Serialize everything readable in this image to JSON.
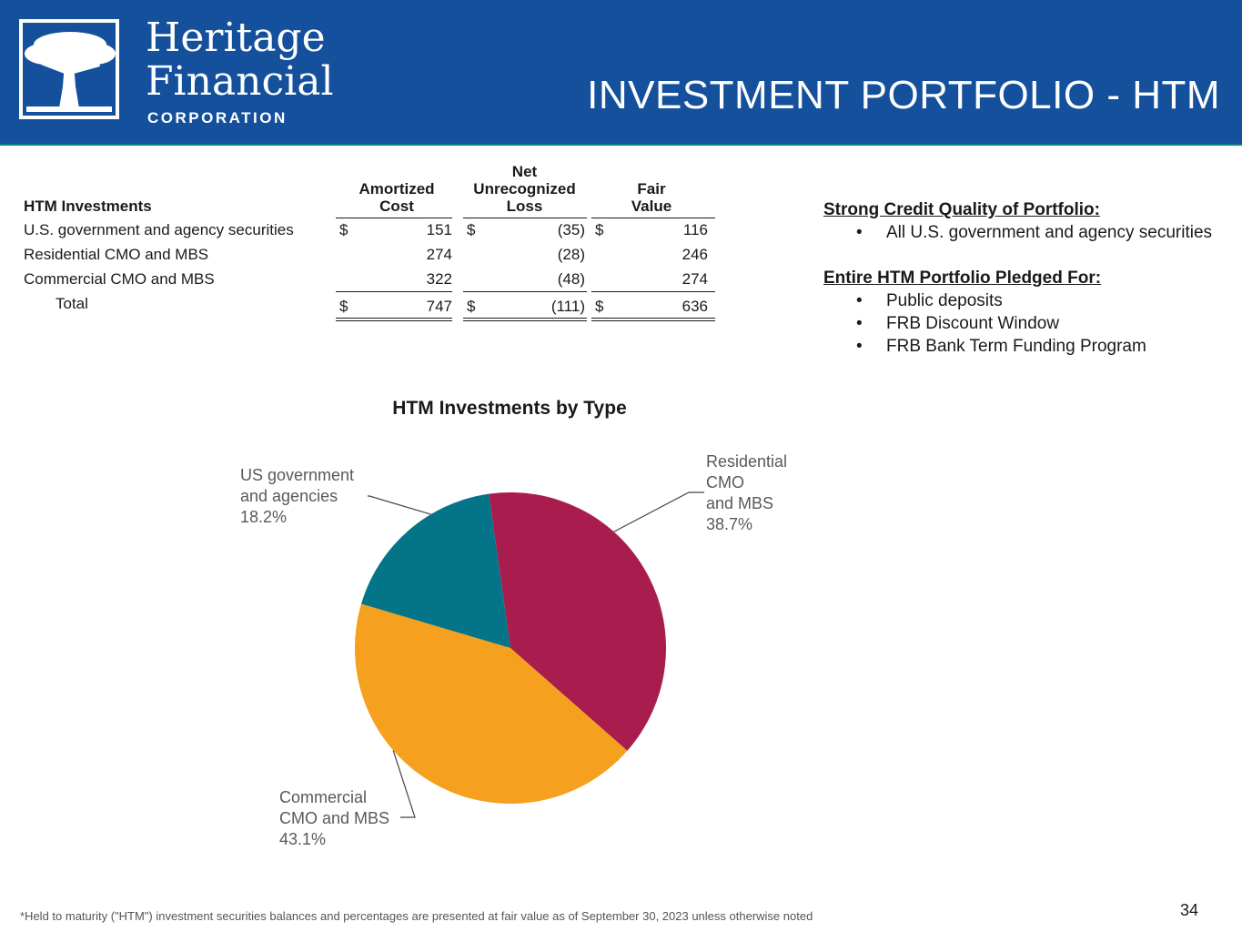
{
  "header": {
    "brand_line1": "Heritage",
    "brand_line2": "Financial",
    "brand_line3": "CORPORATION",
    "title": "INVESTMENT PORTFOLIO - HTM",
    "logo_icon": "tree-logo-icon",
    "colors": {
      "background": "#14509c",
      "accent": "#0f7f8a"
    }
  },
  "table": {
    "headers": {
      "label": "HTM Investments",
      "amortized_cost": [
        "Amortized",
        "Cost"
      ],
      "net_loss": [
        "Net",
        "Unrecognized",
        "Loss"
      ],
      "fair_value": [
        "Fair",
        "Value"
      ]
    },
    "rows": [
      {
        "label": "U.S. government and agency securities",
        "cost_sym": "$",
        "cost": "151",
        "loss_sym": "$",
        "loss": "(35)",
        "fair_sym": "$",
        "fair": "116"
      },
      {
        "label": "Residential CMO and MBS",
        "cost_sym": "",
        "cost": "274",
        "loss_sym": "",
        "loss": "(28)",
        "fair_sym": "",
        "fair": "246"
      },
      {
        "label": "Commercial CMO and MBS",
        "cost_sym": "",
        "cost": "322",
        "loss_sym": "",
        "loss": "(48)",
        "fair_sym": "",
        "fair": "274"
      }
    ],
    "total": {
      "label": "Total",
      "cost_sym": "$",
      "cost": "747",
      "loss_sym": "$",
      "loss": "(111)",
      "fair_sym": "$",
      "fair": "636"
    }
  },
  "side": {
    "heading1": "Strong Credit Quality of Portfolio:",
    "list1": [
      "All U.S. government and agency securities"
    ],
    "heading2": "Entire HTM Portfolio Pledged For:",
    "list2": [
      "Public deposits",
      "FRB Discount Window",
      "FRB Bank Term Funding Program"
    ]
  },
  "chart_data": {
    "type": "pie",
    "title": "HTM Investments by Type",
    "slices": [
      {
        "label_lines": [
          "Residential",
          "CMO",
          "and MBS"
        ],
        "value": 38.7,
        "value_label": "38.7%",
        "color": "#a81c4e"
      },
      {
        "label_lines": [
          "Commercial",
          "CMO and MBS"
        ],
        "value": 43.1,
        "value_label": "43.1%",
        "color": "#f5a01e"
      },
      {
        "label_lines": [
          "US government",
          "and agencies"
        ],
        "value": 18.2,
        "value_label": "18.2%",
        "color": "#047588"
      }
    ],
    "legend": "none"
  },
  "footer": {
    "note": "*Held to maturity (\"HTM\") investment securities balances and percentages are presented at fair value as of September 30, 2023 unless otherwise noted",
    "page_number": "34"
  }
}
